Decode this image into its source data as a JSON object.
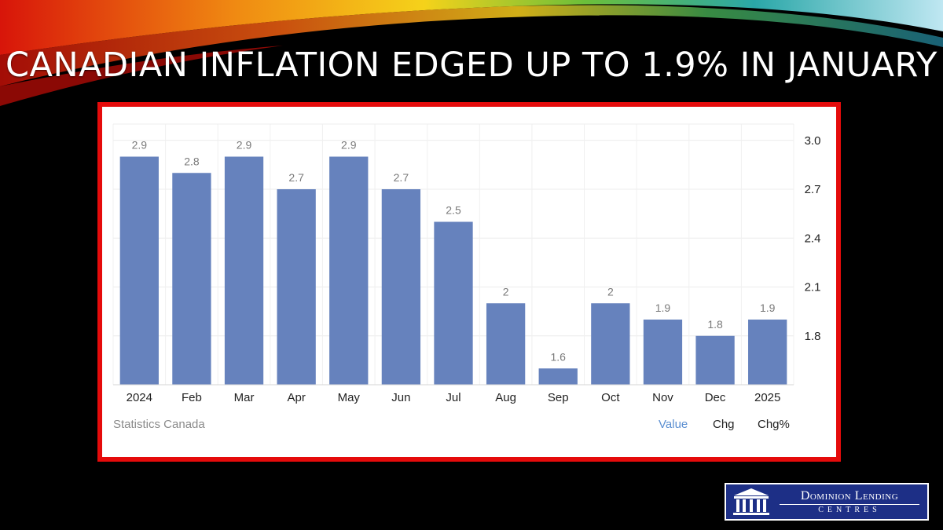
{
  "slide": {
    "title": "Canadian Inflation Edged Up to 1.9% in January"
  },
  "chart_data": {
    "type": "bar",
    "categories": [
      "2024",
      "Feb",
      "Mar",
      "Apr",
      "May",
      "Jun",
      "Jul",
      "Aug",
      "Sep",
      "Oct",
      "Nov",
      "Dec",
      "2025"
    ],
    "values": [
      2.9,
      2.8,
      2.9,
      2.7,
      2.9,
      2.7,
      2.5,
      2,
      1.6,
      2,
      1.9,
      1.8,
      1.9
    ],
    "value_labels": [
      "2.9",
      "2.8",
      "2.9",
      "2.7",
      "2.9",
      "2.7",
      "2.5",
      "2",
      "1.6",
      "2",
      "1.9",
      "1.8",
      "1.9"
    ],
    "yticks": [
      "1.8",
      "2.1",
      "2.4",
      "2.7",
      "3.0"
    ],
    "ylim": [
      1.5,
      3.1
    ],
    "y_axis_side": "right",
    "grid": true,
    "bar_color": "#6682bd",
    "title": "",
    "xlabel": "",
    "ylabel": ""
  },
  "footer": {
    "source": "Statistics Canada",
    "tabs": [
      "Value",
      "Chg",
      "Chg%"
    ]
  },
  "logo": {
    "name": "Dominion Lending",
    "sub": "CENTRES"
  },
  "colors": {
    "frame": "#e50b0b",
    "active_tab": "#5b8fd1",
    "logo_bg": "#1d2f86"
  }
}
